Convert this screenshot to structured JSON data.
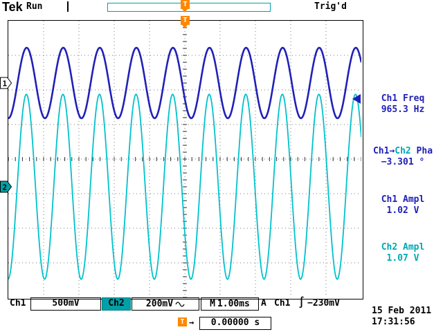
{
  "header": {
    "logo": "Tek",
    "acq_status": "Run",
    "trig_status": "Trig'd",
    "trig_marker": "T"
  },
  "channel_markers": {
    "ch1": "1",
    "ch2": "2"
  },
  "measurements": {
    "m1": {
      "label": "Ch1 Freq",
      "value": "965.3 Hz"
    },
    "m2": {
      "label_pre": "Ch1→",
      "label_ch2": "Ch2",
      "label_post": " Pha",
      "value": "−3.301 °"
    },
    "m3": {
      "label": "Ch1 Ampl",
      "value": "1.02 V"
    },
    "m4": {
      "label": "Ch2 Ampl",
      "value": "1.07 V"
    }
  },
  "status_bar": {
    "ch1_label": "Ch1",
    "ch1_scale": "500mV",
    "ch2_label": "Ch2",
    "ch2_scale": "200mV",
    "timebase_label": "M",
    "timebase": "1.00ms",
    "trig_mode": "A",
    "trig_source": "Ch1",
    "slope_icon": "∫",
    "trig_level": "−230mV"
  },
  "footer": {
    "trig_marker": "T",
    "arrow": "→",
    "trig_position": "0.00000 s",
    "date": "15 Feb 2011",
    "time": "17:31:56"
  },
  "colors": {
    "ch1": "#2020b8",
    "ch2_text": "#00a8b4",
    "ch2_wave": "#00c2cc",
    "teal_ui": "#00a0a8",
    "trigger_orange": "#ff8800"
  },
  "chart_data": {
    "type": "line",
    "title": "",
    "x": {
      "divisions": 10,
      "time_per_division": "1.00ms"
    },
    "y_divisions": 8,
    "trigger": {
      "source": "Ch1",
      "level": "−230mV",
      "position": "0.00000 s",
      "slope": "falling"
    },
    "series": [
      {
        "name": "Ch1",
        "color": "#2020b8",
        "volts_per_div": 0.5,
        "amplitude_vpp_v": 1.02,
        "frequency_hz": 965.3,
        "cycles_visible": 9.653,
        "center_div_from_top": 1.8,
        "phase_at_center_deg": 26.75,
        "stroke_width": 2.6
      },
      {
        "name": "Ch2",
        "color": "#00c2cc",
        "volts_per_div": 0.2,
        "amplitude_vpp_v": 1.07,
        "frequency_hz": 965.3,
        "cycles_visible": 9.653,
        "center_div_from_top": 4.8,
        "phase_at_center_deg": 30.05,
        "phase_vs_ch1_deg": -3.301,
        "stroke_width": 1.8
      }
    ]
  }
}
